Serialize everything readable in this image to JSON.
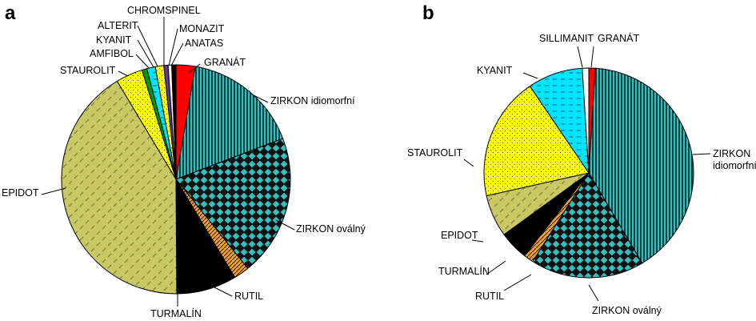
{
  "chart_data": [
    {
      "type": "pie",
      "panel_label": "a",
      "slices": [
        {
          "label": "GRANÁT",
          "value": 2.7,
          "color": "#ff0000",
          "pattern": "solid"
        },
        {
          "label": "ZIRKON idiomorfní",
          "value": 16.5,
          "color": "#33bfbf",
          "pattern": "vstripes"
        },
        {
          "label": "ZIRKON oválný",
          "value": 20.0,
          "color": "#33bfbf",
          "pattern": "checker"
        },
        {
          "label": "RUTIL",
          "value": 2.2,
          "color": "#f0a030",
          "pattern": "diagonal"
        },
        {
          "label": "TURMALÍN",
          "value": 8.5,
          "color": "#000000",
          "pattern": "solid"
        },
        {
          "label": "EPIDOT",
          "value": 41.5,
          "color": "#c8c864",
          "pattern": "dashes"
        },
        {
          "label": "STAUROLIT",
          "value": 3.8,
          "color": "#ffff00",
          "pattern": "dots"
        },
        {
          "label": "AMFIBOL",
          "value": 0.7,
          "color": "#009900",
          "pattern": "solid"
        },
        {
          "label": "KYANIT",
          "value": 1.2,
          "color": "#00e5ff",
          "pattern": "dashes"
        },
        {
          "label": "ALTERIT",
          "value": 1.2,
          "color": "#ffff00",
          "pattern": "dots"
        },
        {
          "label": "CHROMSPINEL",
          "value": 0.6,
          "color": "#663399",
          "pattern": "solid"
        },
        {
          "label": "MONAZIT",
          "value": 0.5,
          "color": "#ffffff",
          "pattern": "solid"
        },
        {
          "label": "ANATAS",
          "value": 0.6,
          "color": "#000000",
          "pattern": "solid"
        }
      ]
    },
    {
      "type": "pie",
      "panel_label": "b",
      "slices": [
        {
          "label": "GRANÁT",
          "value": 1.0,
          "color": "#ff0000",
          "pattern": "solid"
        },
        {
          "label": "ZIRKON idiomorfní",
          "value": 40.5,
          "color": "#33bfbf",
          "pattern": "vstripes"
        },
        {
          "label": "ZIRKON oválný",
          "value": 17.5,
          "color": "#33bfbf",
          "pattern": "checker"
        },
        {
          "label": "RUTIL",
          "value": 1.5,
          "color": "#f0a030",
          "pattern": "diagonal"
        },
        {
          "label": "TURMALÍN",
          "value": 4.5,
          "color": "#000000",
          "pattern": "solid"
        },
        {
          "label": "EPIDOT",
          "value": 6.5,
          "color": "#c8c864",
          "pattern": "dashes"
        },
        {
          "label": "STAUROLIT",
          "value": 19.0,
          "color": "#ffff00",
          "pattern": "dots"
        },
        {
          "label": "KYANIT",
          "value": 8.5,
          "color": "#00e5ff",
          "pattern": "dashes"
        },
        {
          "label": "SILLIMANIT",
          "value": 1.0,
          "color": "#ffffff",
          "pattern": "solid"
        }
      ]
    }
  ]
}
